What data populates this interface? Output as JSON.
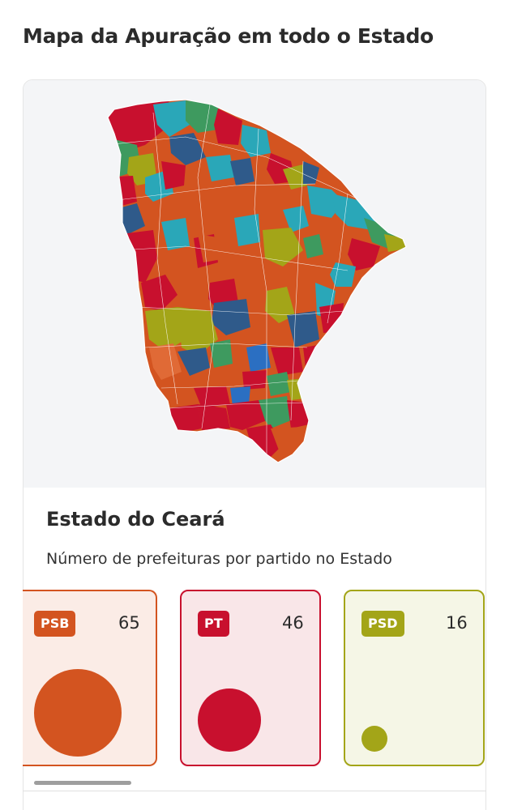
{
  "page_title": "Mapa da Apuração em todo o Estado",
  "state": {
    "name": "Estado do Ceará",
    "subtitle": "Número de prefeituras por partido no Estado"
  },
  "parties": [
    {
      "name": "PSB",
      "count": "65",
      "color": "#d35420",
      "bg": "#fbece6"
    },
    {
      "name": "PT",
      "count": "46",
      "color": "#c8102e",
      "bg": "#f9e6e8"
    },
    {
      "name": "PSD",
      "count": "16",
      "color": "#a3a518",
      "bg": "#f5f6e6"
    }
  ],
  "map_colors": {
    "psb_orange": "#d35420",
    "pt_red": "#c8102e",
    "psd_olive": "#a3a518",
    "teal": "#2aa7b8",
    "dark_blue": "#2f5a8a",
    "green": "#3e9a5f",
    "blue": "#2b6fc2"
  }
}
